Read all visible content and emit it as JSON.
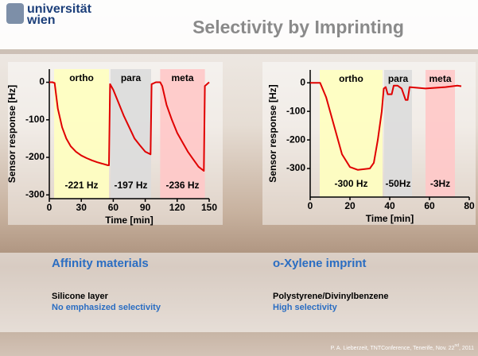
{
  "logo_lines": [
    "universität",
    "wien"
  ],
  "title": "Selectivity by Imprinting",
  "chart_data": [
    {
      "type": "line",
      "xlabel": "Time [min]",
      "ylabel": "Sensor response [Hz]",
      "x": [
        0,
        3,
        5,
        8,
        12,
        16,
        20,
        25,
        30,
        35,
        40,
        45,
        50,
        55,
        56,
        57,
        60,
        65,
        70,
        75,
        80,
        85,
        90,
        95,
        96,
        100,
        104,
        106,
        110,
        115,
        120,
        125,
        130,
        135,
        140,
        145,
        146,
        150
      ],
      "series": [
        {
          "color": "#e00000",
          "values": [
            0,
            0,
            -2,
            -70,
            -120,
            -150,
            -170,
            -185,
            -195,
            -202,
            -208,
            -213,
            -217,
            -221,
            -221,
            -5,
            -20,
            -55,
            -90,
            -120,
            -150,
            -168,
            -185,
            -192,
            -5,
            0,
            0,
            -10,
            -60,
            -100,
            -135,
            -160,
            -185,
            -205,
            -225,
            -236,
            -10,
            0
          ]
        }
      ],
      "xlim": [
        0,
        150
      ],
      "ylim": [
        -310,
        35
      ],
      "xticks": [
        0,
        30,
        60,
        90,
        120,
        150
      ],
      "yticks": [
        0,
        -100,
        -200,
        -300
      ],
      "regions": [
        {
          "label": "ortho",
          "annotation": "-221 Hz",
          "range": [
            4.5,
            56
          ],
          "color": "#ffffc0"
        },
        {
          "label": "para",
          "annotation": "-197 Hz",
          "range": [
            57.5,
            95.5
          ],
          "color": "#dcdcdc"
        },
        {
          "label": "meta",
          "annotation": "-236 Hz",
          "range": [
            104,
            146
          ],
          "color": "#ffc8c8"
        }
      ]
    },
    {
      "type": "line",
      "xlabel": "Time [min]",
      "ylabel": "Sensor response [Hz]",
      "x": [
        0,
        5,
        8,
        12,
        16,
        20,
        24,
        30,
        32,
        34,
        36,
        37,
        38,
        39,
        41,
        42,
        44,
        46,
        48,
        49,
        50,
        58,
        68,
        74,
        76
      ],
      "series": [
        {
          "color": "#e00000",
          "values": [
            0,
            0,
            -50,
            -150,
            -250,
            -295,
            -305,
            -300,
            -280,
            -200,
            -100,
            -20,
            -15,
            -40,
            -40,
            -10,
            -10,
            -20,
            -60,
            -60,
            -15,
            -20,
            -15,
            -10,
            -12
          ]
        }
      ],
      "xlim": [
        0,
        80
      ],
      "ylim": [
        -400,
        45
      ],
      "xticks": [
        0,
        20,
        40,
        60,
        80
      ],
      "yticks": [
        0,
        -100,
        -200,
        -300
      ],
      "regions": [
        {
          "label": "ortho",
          "annotation": "-300 Hz",
          "range": [
            4.8,
            36.4
          ],
          "color": "#ffffc0"
        },
        {
          "label": "para",
          "annotation": "-50Hz",
          "range": [
            37.2,
            51.2
          ],
          "color": "#dcdcdc"
        },
        {
          "label": "meta",
          "annotation": "-3Hz",
          "range": [
            58,
            72.8
          ],
          "color": "#ffc8c8"
        }
      ]
    }
  ],
  "sections": [
    {
      "heading": "Affinity materials",
      "line1": "Silicone layer",
      "line2": "No emphasized selectivity"
    },
    {
      "heading": "o-Xylene imprint",
      "line1": "Polystyrene/Divinylbenzene",
      "line2": "High selectivity"
    }
  ],
  "footer": {
    "before": "P. A. Lieberzeit, TNTConference, Tenerife, Nov. 22",
    "sup": "nd",
    "after": ", 2011"
  }
}
